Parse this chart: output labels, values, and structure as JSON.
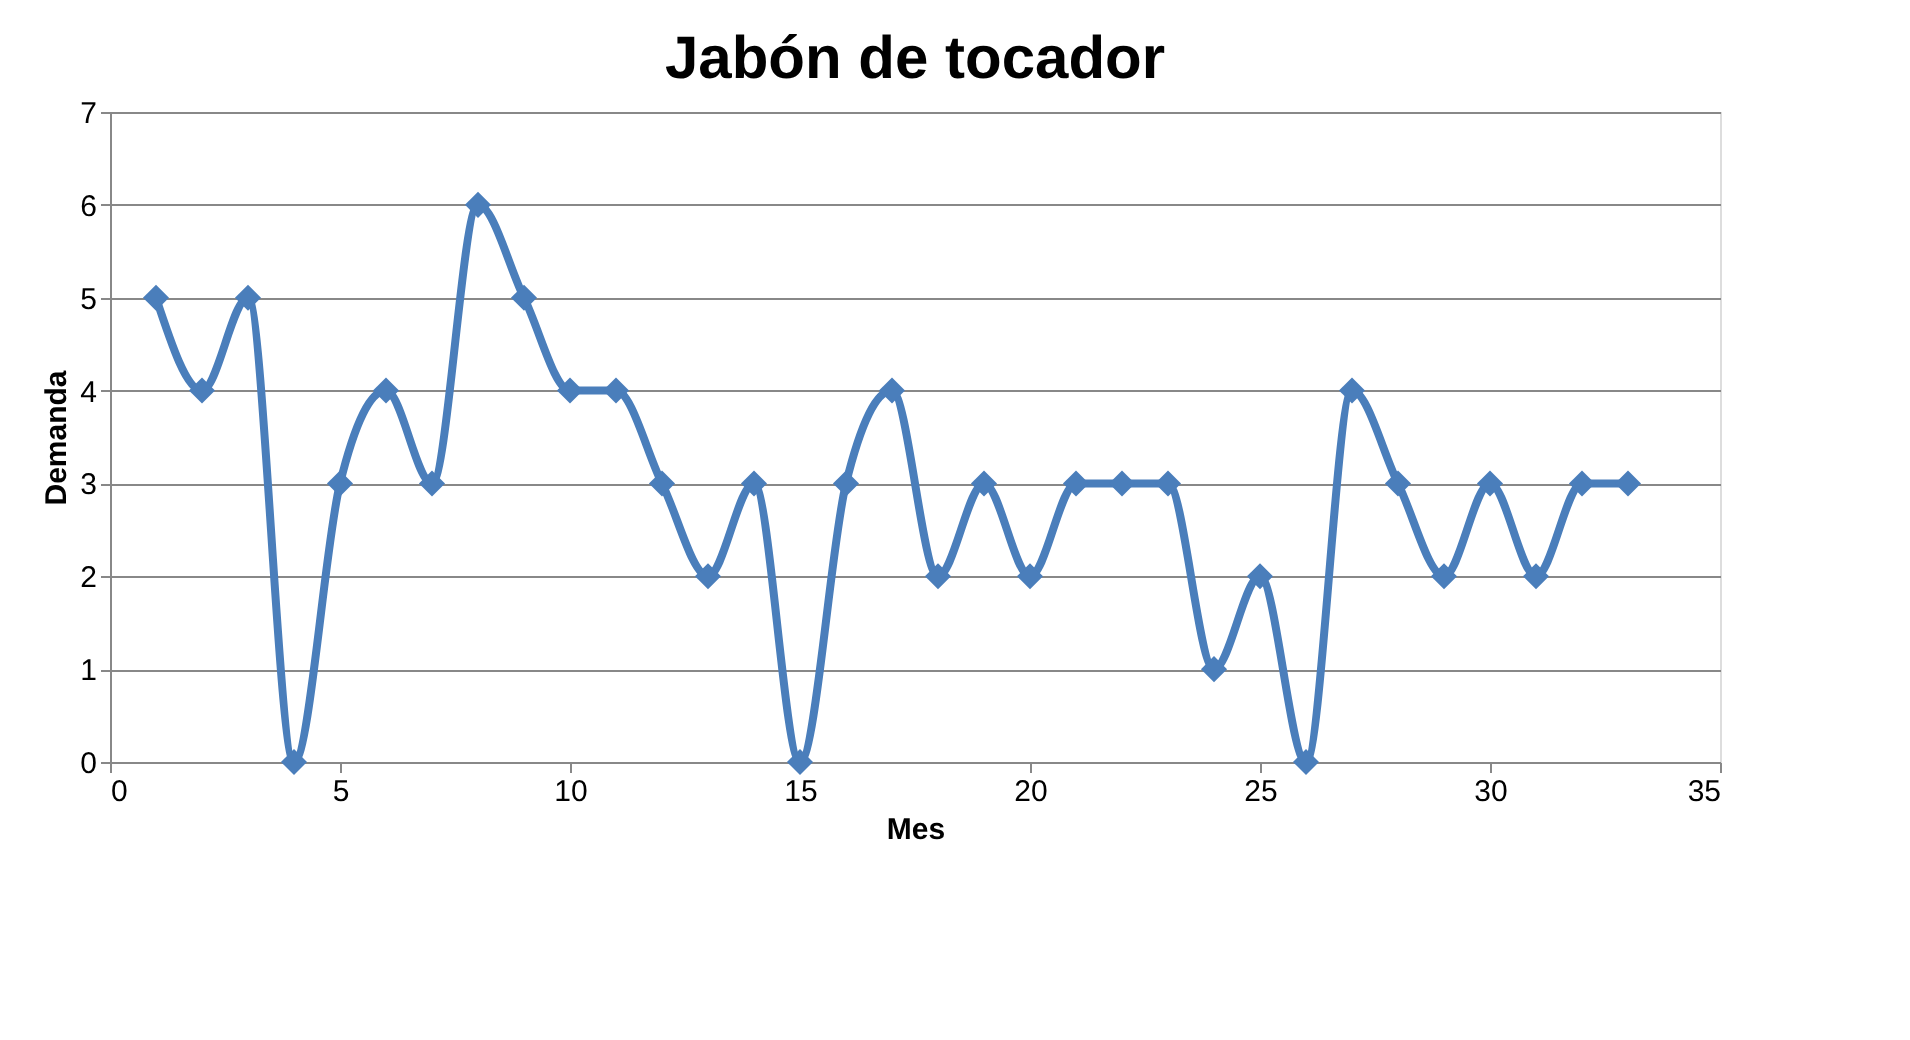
{
  "chart_data": {
    "type": "line",
    "title": "Jabón de tocador",
    "xlabel": "Mes",
    "ylabel": "Demanda",
    "x": [
      1,
      2,
      3,
      4,
      5,
      6,
      7,
      8,
      9,
      10,
      11,
      12,
      13,
      14,
      15,
      16,
      17,
      18,
      19,
      20,
      21,
      22,
      23,
      24,
      25,
      26,
      27,
      28,
      29,
      30,
      31,
      32,
      33
    ],
    "series": [
      {
        "color": "#4a7ebb",
        "values": [
          5,
          4,
          5,
          0,
          3,
          4,
          3,
          6,
          5,
          4,
          4,
          3,
          2,
          3,
          0,
          3,
          4,
          2,
          3,
          2,
          3,
          3,
          3,
          1,
          2,
          0,
          4,
          3,
          2,
          3,
          2,
          3,
          3
        ]
      }
    ],
    "xlim": [
      0,
      35
    ],
    "xticks": [
      0,
      5,
      10,
      15,
      20,
      25,
      30,
      35
    ],
    "ylim": [
      0,
      7
    ],
    "yticks": [
      0,
      1,
      2,
      3,
      4,
      5,
      6,
      7
    ],
    "grid": "y",
    "marker": "diamond",
    "line_style": "solid",
    "legend": false
  }
}
